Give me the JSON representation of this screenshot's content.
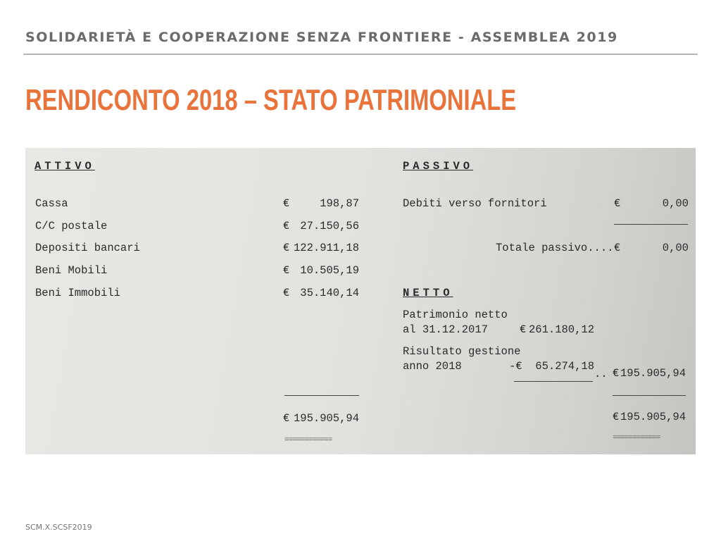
{
  "slide": {
    "header": "SOLIDARIETÀ E COOPERAZIONE SENZA FRONTIERE - ASSEMBLEA 2019",
    "title": "RENDICONTO 2018 – STATO PATRIMONIALE",
    "footer": "SCM.X.SCSF2019",
    "accent_color": "#e8743b"
  },
  "document": {
    "currency": "€",
    "attivo": {
      "heading": "ATTIVO",
      "items": [
        {
          "label": "Cassa",
          "amount": "198,87"
        },
        {
          "label": "C/C postale",
          "amount": "27.150,56"
        },
        {
          "label": "Depositi bancari",
          "amount": "122.911,18"
        },
        {
          "label": "Beni Mobili",
          "amount": "10.505,19"
        },
        {
          "label": "Beni Immobili",
          "amount": "35.140,14"
        }
      ],
      "total": "195.905,94",
      "double_rule": "============"
    },
    "passivo": {
      "heading": "PASSIVO",
      "items": [
        {
          "label": "Debiti verso fornitori",
          "amount": "0,00"
        }
      ],
      "total_label": "Totale passivo....",
      "total": "0,00"
    },
    "netto": {
      "heading": "NETTO",
      "patrimonio_line1": "Patrimonio netto",
      "patrimonio_line2": "al 31.12.2017",
      "patrimonio_amount": "261.180,12",
      "risultato_line1": "Risultato gestione",
      "risultato_line2": "anno 2018",
      "risultato_amount": "-€  65.274,18",
      "leader": "..",
      "subtotal": "195.905,94",
      "total": "195.905,94",
      "double_rule": "============"
    }
  }
}
